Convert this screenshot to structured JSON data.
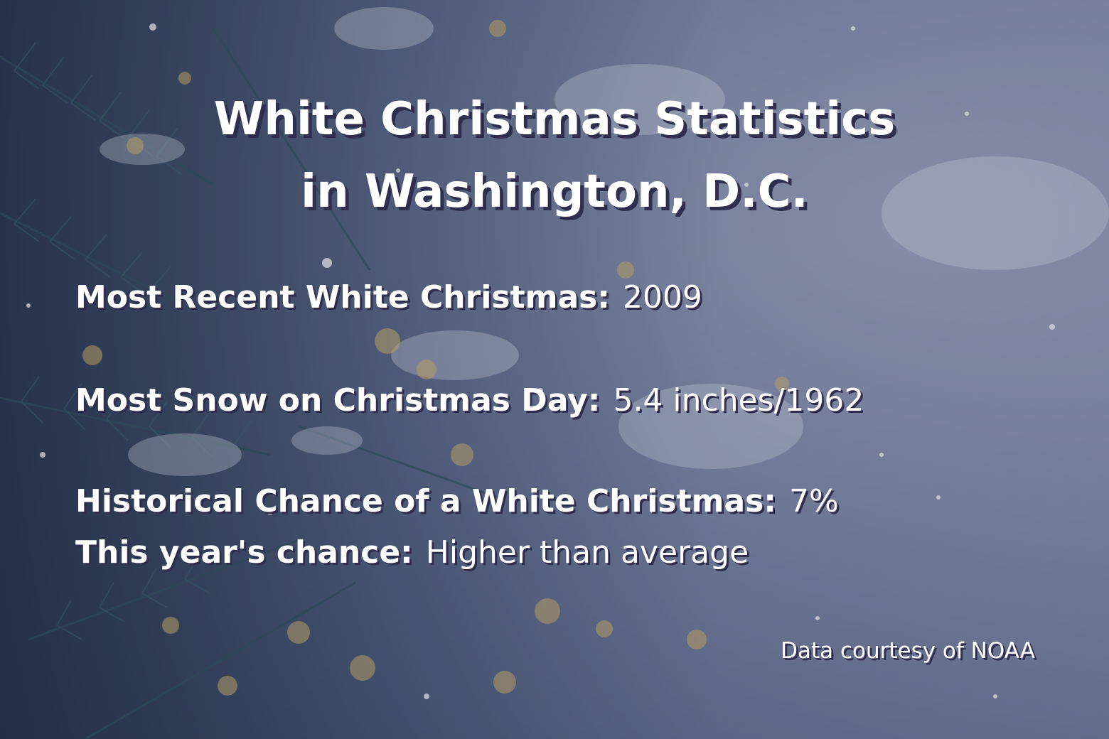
{
  "title": {
    "line1": "White Christmas Statistics",
    "line2": "in Washington, D.C."
  },
  "stats": [
    {
      "label": "Most Recent White Christmas:",
      "value": "2009"
    },
    {
      "label": "Most Snow on Christmas Day:",
      "value": "5.4 inches/1962"
    },
    {
      "label": "Historical Chance of a White Christmas:",
      "value": "7%"
    },
    {
      "label": "This year's chance:",
      "value": "Higher than average"
    }
  ],
  "credit": "Data courtesy of NOAA",
  "colors": {
    "text": "#ffffff",
    "text_shadow": "#2f2e4f",
    "background_dark": "#1e2a3e",
    "background_light": "#a9adc6",
    "bokeh": "#d6b56a"
  }
}
